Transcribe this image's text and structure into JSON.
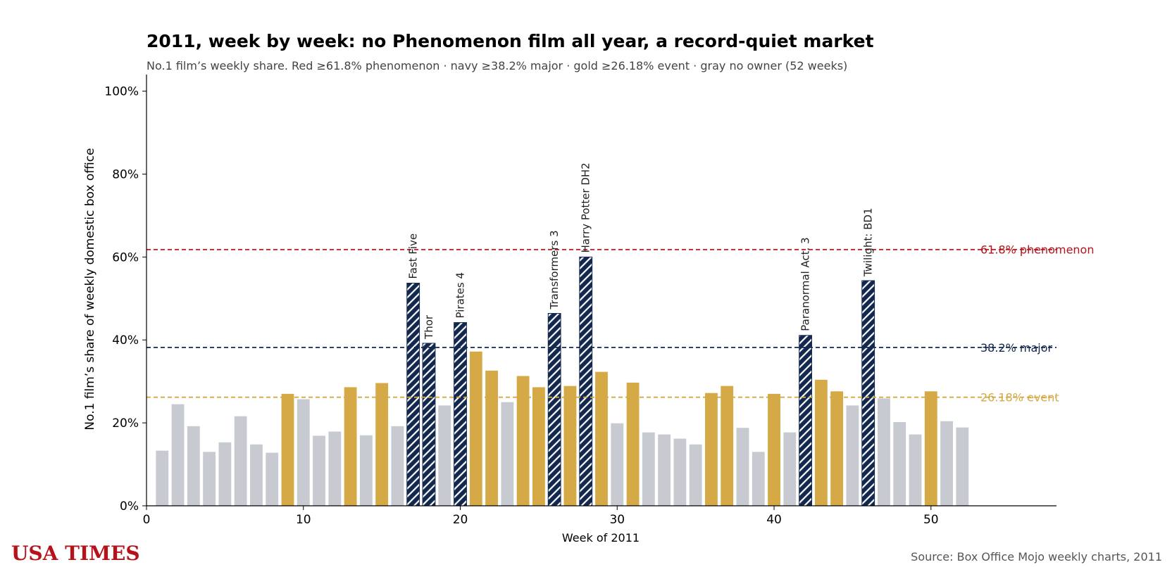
{
  "title": "2011, week by week: no Phenomenon film all year, a record-quiet market",
  "subtitle": "No.1 film’s weekly share. Red ≥61.8% phenomenon · navy ≥38.2% major · gold ≥26.18% event · gray no owner (52 weeks)",
  "brand": "USA TIMES",
  "source": "Source: Box Office Mojo weekly charts, 2011",
  "colors": {
    "gray": "#c8cad1",
    "gold": "#d4a946",
    "navy": "#13284f",
    "red": "#b5121b"
  },
  "chart_data": {
    "type": "bar",
    "xlabel": "Week of 2011",
    "ylabel": "No.1 film’s share of weekly domestic box office",
    "xlim": [
      0,
      58
    ],
    "ylim": [
      0,
      104
    ],
    "x_ticks": [
      0,
      10,
      20,
      30,
      40,
      50
    ],
    "y_ticks": [
      0,
      20,
      40,
      60,
      80,
      100
    ],
    "y_tick_labels": [
      "0%",
      "20%",
      "40%",
      "60%",
      "80%",
      "100%"
    ],
    "thresholds": [
      {
        "value": 61.8,
        "label": "61.8% phenomenon",
        "color": "#b5121b"
      },
      {
        "value": 38.2,
        "label": "38.2% major",
        "color": "#13284f"
      },
      {
        "value": 26.18,
        "label": "26.18% event",
        "color": "#d4a946"
      }
    ],
    "weeks": [
      1,
      2,
      3,
      4,
      5,
      6,
      7,
      8,
      9,
      10,
      11,
      12,
      13,
      14,
      15,
      16,
      17,
      18,
      19,
      20,
      21,
      22,
      23,
      24,
      25,
      26,
      27,
      28,
      29,
      30,
      31,
      32,
      33,
      34,
      35,
      36,
      37,
      38,
      39,
      40,
      41,
      42,
      43,
      44,
      45,
      46,
      47,
      48,
      49,
      50,
      51,
      52
    ],
    "values": [
      13.3,
      24.5,
      19.2,
      13.0,
      15.3,
      21.6,
      14.8,
      12.8,
      27.0,
      25.7,
      16.9,
      17.9,
      28.6,
      17.0,
      29.6,
      19.2,
      53.7,
      39.2,
      24.2,
      44.2,
      37.2,
      32.6,
      25.0,
      31.3,
      28.6,
      46.4,
      28.9,
      60.0,
      32.3,
      19.9,
      29.7,
      17.7,
      17.2,
      16.2,
      14.8,
      27.2,
      28.9,
      18.8,
      13.0,
      27.0,
      17.7,
      41.1,
      30.4,
      27.6,
      24.2,
      54.3,
      25.9,
      20.2,
      17.2,
      27.6,
      20.4,
      18.9
    ],
    "tiers": [
      "gray",
      "gray",
      "gray",
      "gray",
      "gray",
      "gray",
      "gray",
      "gray",
      "gold",
      "gray",
      "gray",
      "gray",
      "gold",
      "gray",
      "gold",
      "gray",
      "navy",
      "navy",
      "gray",
      "navy",
      "gold",
      "gold",
      "gray",
      "gold",
      "gold",
      "navy",
      "gold",
      "navy",
      "gold",
      "gray",
      "gold",
      "gray",
      "gray",
      "gray",
      "gray",
      "gold",
      "gold",
      "gray",
      "gray",
      "gold",
      "gray",
      "navy",
      "gold",
      "gold",
      "gray",
      "navy",
      "gray",
      "gray",
      "gray",
      "gold",
      "gray",
      "gray"
    ],
    "annotations": [
      {
        "week": 17,
        "label": "Fast Five"
      },
      {
        "week": 18,
        "label": "Thor"
      },
      {
        "week": 20,
        "label": "Pirates 4"
      },
      {
        "week": 26,
        "label": "Transformers 3"
      },
      {
        "week": 28,
        "label": "Harry Potter DH2"
      },
      {
        "week": 42,
        "label": "Paranormal Act. 3"
      },
      {
        "week": 46,
        "label": "Twilight: BD1"
      }
    ]
  }
}
